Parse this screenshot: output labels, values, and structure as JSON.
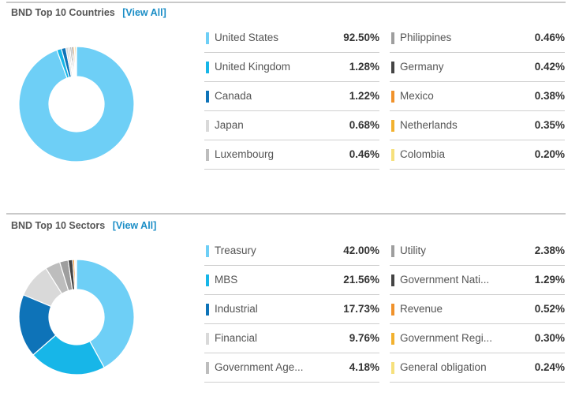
{
  "countries": {
    "title": "BND Top 10 Countries",
    "view_all": "[View All]",
    "items": [
      {
        "name": "United States",
        "value": "92.50%",
        "pct": 92.5,
        "color": "#6ecff6"
      },
      {
        "name": "United Kingdom",
        "value": "1.28%",
        "pct": 1.28,
        "color": "#17b6e8"
      },
      {
        "name": "Canada",
        "value": "1.22%",
        "pct": 1.22,
        "color": "#0e73b8"
      },
      {
        "name": "Japan",
        "value": "0.68%",
        "pct": 0.68,
        "color": "#d9d9d9"
      },
      {
        "name": "Luxembourg",
        "value": "0.46%",
        "pct": 0.46,
        "color": "#bdbdbd"
      },
      {
        "name": "Philippines",
        "value": "0.46%",
        "pct": 0.46,
        "color": "#9e9e9e"
      },
      {
        "name": "Germany",
        "value": "0.42%",
        "pct": 0.42,
        "color": "#444444"
      },
      {
        "name": "Mexico",
        "value": "0.38%",
        "pct": 0.38,
        "color": "#f0922b"
      },
      {
        "name": "Netherlands",
        "value": "0.35%",
        "pct": 0.35,
        "color": "#f2b12e"
      },
      {
        "name": "Colombia",
        "value": "0.20%",
        "pct": 0.2,
        "color": "#f6e07c"
      }
    ]
  },
  "sectors": {
    "title": "BND Top 10 Sectors",
    "view_all": "[View All]",
    "items": [
      {
        "name": "Treasury",
        "value": "42.00%",
        "pct": 42.0,
        "color": "#6ecff6"
      },
      {
        "name": "MBS",
        "value": "21.56%",
        "pct": 21.56,
        "color": "#17b6e8"
      },
      {
        "name": "Industrial",
        "value": "17.73%",
        "pct": 17.73,
        "color": "#0e73b8"
      },
      {
        "name": "Financial",
        "value": "9.76%",
        "pct": 9.76,
        "color": "#d9d9d9"
      },
      {
        "name": "Government Age...",
        "value": "4.18%",
        "pct": 4.18,
        "color": "#bdbdbd"
      },
      {
        "name": "Utility",
        "value": "2.38%",
        "pct": 2.38,
        "color": "#9e9e9e"
      },
      {
        "name": "Government Nati...",
        "value": "1.29%",
        "pct": 1.29,
        "color": "#444444"
      },
      {
        "name": "Revenue",
        "value": "0.52%",
        "pct": 0.52,
        "color": "#f0922b"
      },
      {
        "name": "Government Regi...",
        "value": "0.30%",
        "pct": 0.3,
        "color": "#f2b12e"
      },
      {
        "name": "General obligation",
        "value": "0.24%",
        "pct": 0.24,
        "color": "#f6e07c"
      }
    ]
  }
}
